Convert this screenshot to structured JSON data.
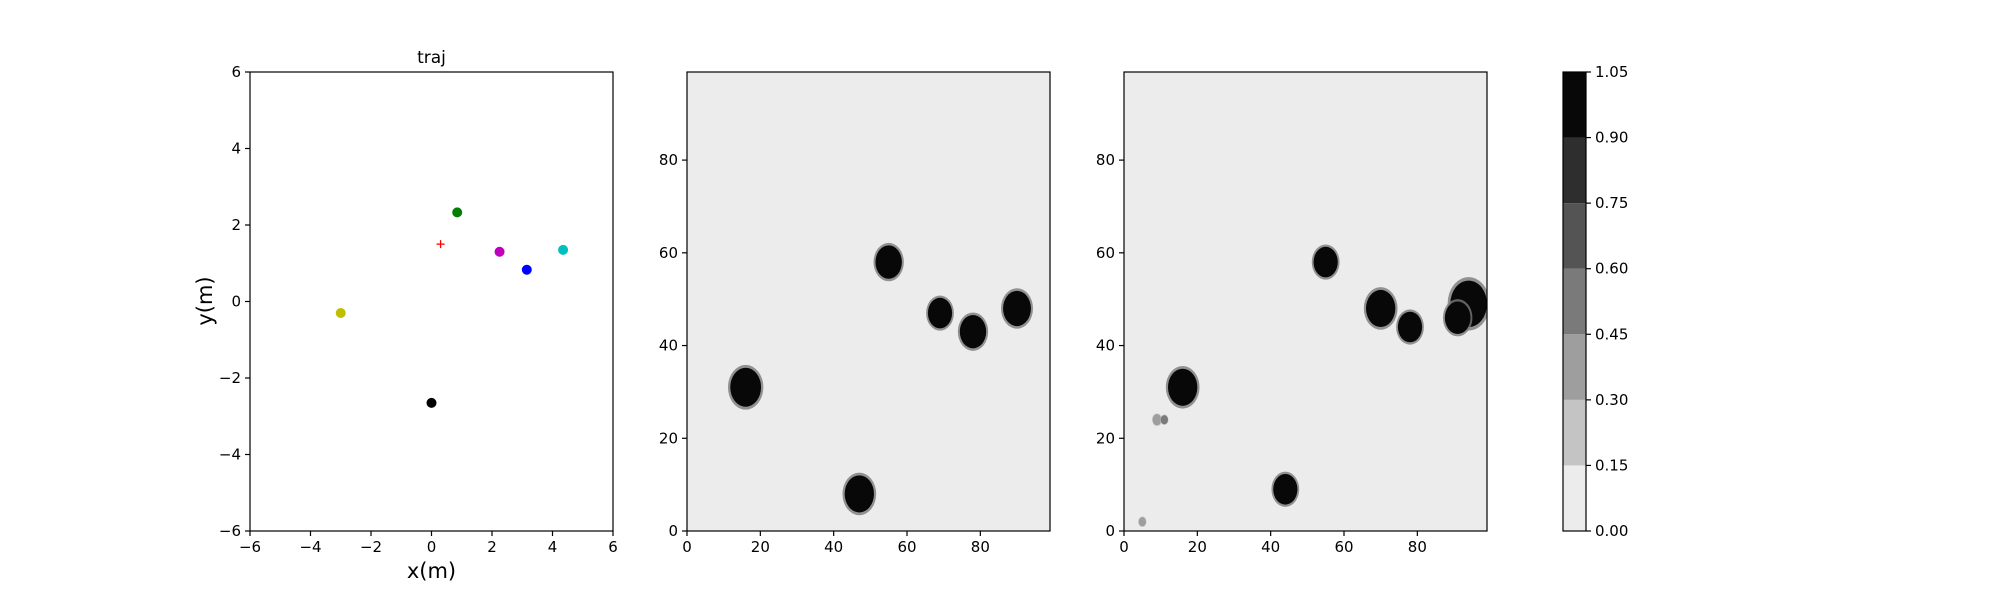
{
  "chart_data": [
    {
      "type": "scatter",
      "title": "traj",
      "xlabel": "x(m)",
      "ylabel": "y(m)",
      "xlim": [
        -6,
        6
      ],
      "ylim": [
        -6,
        6
      ],
      "xticks": [
        -6,
        -4,
        -2,
        0,
        2,
        4,
        6
      ],
      "yticks": [
        -6,
        -4,
        -2,
        0,
        2,
        4,
        6
      ],
      "grid": false,
      "points": [
        {
          "x": 0.85,
          "y": 2.33,
          "color": "#008000",
          "marker": "circle"
        },
        {
          "x": 2.25,
          "y": 1.3,
          "color": "#bf00bf",
          "marker": "circle"
        },
        {
          "x": 4.35,
          "y": 1.35,
          "color": "#00bfbf",
          "marker": "circle"
        },
        {
          "x": 3.15,
          "y": 0.83,
          "color": "#0000ff",
          "marker": "circle"
        },
        {
          "x": -3.0,
          "y": -0.3,
          "color": "#bfbf00",
          "marker": "circle"
        },
        {
          "x": 0.0,
          "y": -2.65,
          "color": "#000000",
          "marker": "circle"
        },
        {
          "x": 0.3,
          "y": 1.5,
          "color": "#ff0000",
          "marker": "plus"
        }
      ]
    },
    {
      "type": "heatmap",
      "title": "",
      "xlim": [
        0,
        99
      ],
      "ylim": [
        0,
        99
      ],
      "xticks": [
        0,
        20,
        40,
        60,
        80
      ],
      "yticks": [
        0,
        20,
        40,
        60,
        80
      ],
      "background_value": 0.05,
      "blobs": [
        {
          "x": 16,
          "y": 31,
          "r": 4.2,
          "value": 1.0
        },
        {
          "x": 55,
          "y": 58,
          "r": 3.6,
          "value": 1.0
        },
        {
          "x": 69,
          "y": 47,
          "r": 3.3,
          "value": 1.0
        },
        {
          "x": 78,
          "y": 43,
          "r": 3.6,
          "value": 1.0
        },
        {
          "x": 90,
          "y": 48,
          "r": 3.8,
          "value": 1.0
        },
        {
          "x": 47,
          "y": 8,
          "r": 4.0,
          "value": 1.0
        }
      ]
    },
    {
      "type": "heatmap",
      "title": "",
      "xlim": [
        0,
        99
      ],
      "ylim": [
        0,
        99
      ],
      "xticks": [
        0,
        20,
        40,
        60,
        80
      ],
      "yticks": [
        0,
        20,
        40,
        60,
        80
      ],
      "background_value": 0.05,
      "blobs": [
        {
          "x": 16,
          "y": 31,
          "r": 4.0,
          "value": 1.0
        },
        {
          "x": 55,
          "y": 58,
          "r": 3.3,
          "value": 1.0
        },
        {
          "x": 70,
          "y": 48,
          "r": 4.0,
          "value": 1.0
        },
        {
          "x": 78,
          "y": 44,
          "r": 3.3,
          "value": 1.0
        },
        {
          "x": 44,
          "y": 9,
          "r": 3.3,
          "value": 1.0
        },
        {
          "x": 94,
          "y": 49,
          "r": 5.0,
          "value": 1.0
        },
        {
          "x": 91,
          "y": 46,
          "r": 3.5,
          "value": 0.95
        },
        {
          "x": 9,
          "y": 24,
          "r": 1.2,
          "value": 0.35
        },
        {
          "x": 11,
          "y": 24,
          "r": 1.0,
          "value": 0.45
        },
        {
          "x": 5,
          "y": 2,
          "r": 1.0,
          "value": 0.3
        }
      ]
    }
  ],
  "colorbar": {
    "vmin": 0.0,
    "vmax": 1.05,
    "levels": [
      0.0,
      0.15,
      0.3,
      0.45,
      0.6,
      0.75,
      0.9,
      1.05
    ],
    "tick_labels": [
      "0.00",
      "0.15",
      "0.30",
      "0.45",
      "0.60",
      "0.75",
      "0.90",
      "1.05"
    ],
    "colors": [
      "#ececec",
      "#c4c4c4",
      "#9e9e9e",
      "#7a7a7a",
      "#545454",
      "#2e2e2e",
      "#080808"
    ]
  }
}
